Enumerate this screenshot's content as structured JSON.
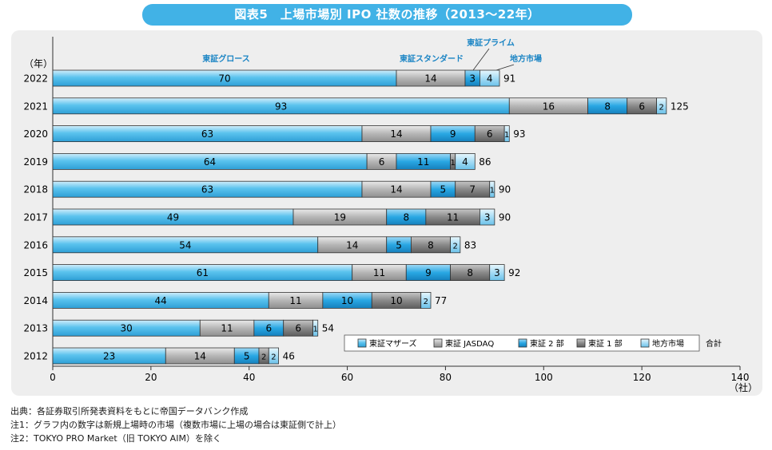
{
  "title": "図表5　上場市場別 IPO 社数の推移（2013～22年）",
  "chart_data": {
    "type": "bar",
    "orientation": "horizontal",
    "stacked": true,
    "y_unit_label": "（年）",
    "x_unit_label": "（社）",
    "xlim": [
      0,
      140
    ],
    "x_ticks": [
      "0",
      "20",
      "40",
      "60",
      "80",
      "100",
      "120",
      "140"
    ],
    "categories": [
      "2022",
      "2021",
      "2020",
      "2019",
      "2018",
      "2017",
      "2016",
      "2015",
      "2014",
      "2013",
      "2012"
    ],
    "series": [
      {
        "name": "東証マザーズ",
        "values": [
          70,
          93,
          63,
          64,
          63,
          49,
          54,
          61,
          44,
          30,
          23
        ]
      },
      {
        "name": "東証 JASDAQ",
        "values": [
          14,
          16,
          14,
          6,
          14,
          19,
          14,
          11,
          11,
          11,
          14
        ]
      },
      {
        "name": "東証 2 部",
        "values": [
          3,
          8,
          9,
          11,
          5,
          8,
          5,
          9,
          10,
          6,
          5
        ]
      },
      {
        "name": "東証 1 部",
        "values": [
          0,
          6,
          6,
          1,
          7,
          11,
          8,
          8,
          10,
          6,
          2
        ]
      },
      {
        "name": "地方市場",
        "values": [
          4,
          2,
          1,
          4,
          1,
          3,
          2,
          3,
          2,
          1,
          2
        ]
      }
    ],
    "totals": [
      91,
      125,
      93,
      86,
      90,
      90,
      83,
      92,
      77,
      54,
      46
    ],
    "colors": [
      "#5bc3ee",
      "#b4b4b4",
      "#29a7e3",
      "#8a8a8a",
      "#a6dcf5"
    ],
    "legend_total_label": "合計",
    "legend_position": "bottom-right",
    "annotations_2022": [
      "東証グロース",
      "東証スタンダード",
      "東証プライム",
      "地方市場"
    ]
  },
  "notes": [
    "出典：各証券取引所発表資料をもとに帝国データバンク作成",
    "注1：グラフ内の数字は新規上場時の市場（複数市場に上場の場合は東証側で計上）",
    "注2：TOKYO PRO Market（旧 TOKYO AIM）を除く"
  ]
}
